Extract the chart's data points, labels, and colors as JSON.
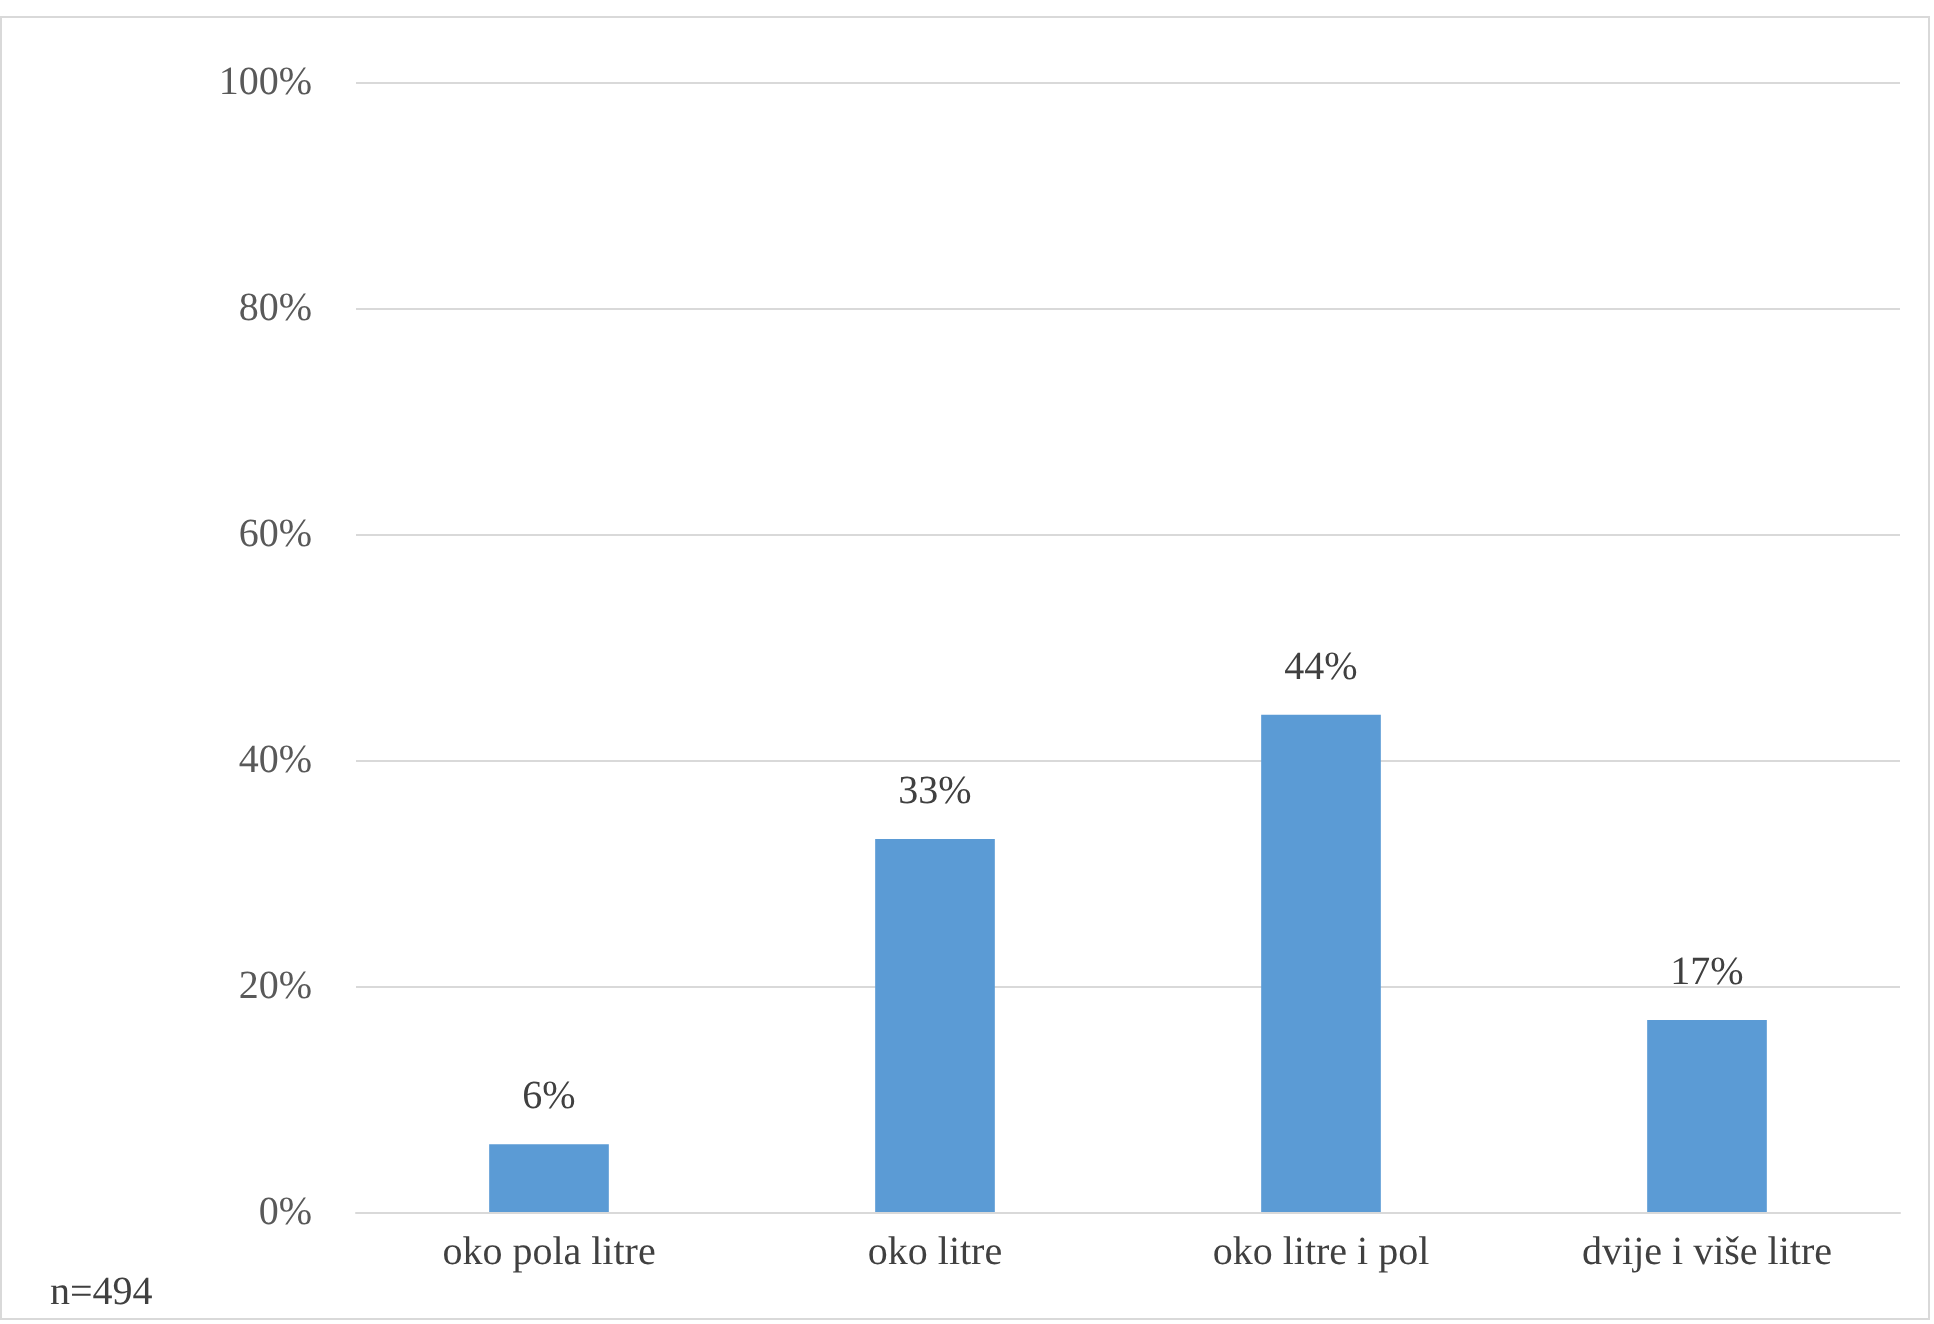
{
  "chart_data": {
    "type": "bar",
    "categories": [
      "oko pola litre",
      "oko litre",
      "oko litre i pol",
      "dvije i više litre"
    ],
    "values": [
      6,
      33,
      44,
      17
    ],
    "value_labels": [
      "6%",
      "33%",
      "44%",
      "17%"
    ],
    "color": "#5b9bd5",
    "ylim": [
      0,
      100
    ],
    "yticks": [
      {
        "value": 0,
        "label": "0%"
      },
      {
        "value": 20,
        "label": "20%"
      },
      {
        "value": 40,
        "label": "40%"
      },
      {
        "value": 60,
        "label": "60%"
      },
      {
        "value": 80,
        "label": "80%"
      },
      {
        "value": 100,
        "label": "100%"
      }
    ],
    "grid": "y",
    "annotations": [
      "n=494"
    ]
  }
}
